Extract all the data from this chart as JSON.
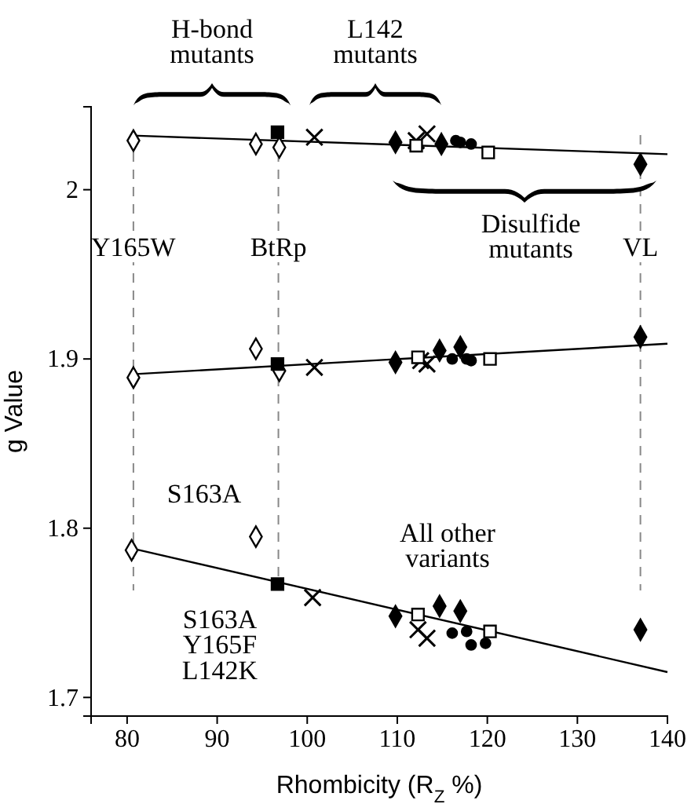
{
  "chart_data": {
    "type": "scatter",
    "xlabel": "Rhombicity (R$_{Z}$ %)",
    "ylabel": "g Value",
    "grid": false,
    "legend": false,
    "xlim": [
      76,
      140
    ],
    "ylim": [
      1.689,
      2.049
    ],
    "xticks": [
      80,
      90,
      100,
      110,
      120,
      130,
      140
    ],
    "yticks": [
      1.7,
      1.8,
      1.9,
      {
        "value": 2,
        "label": "2"
      }
    ],
    "series": [
      {
        "type": "scatter",
        "marker": "diamond",
        "color": "#ffffff",
        "x": [
          80.7,
          94.3,
          96.9,
          80.7,
          94.3,
          96.9,
          80.5,
          94.3
        ],
        "values": [
          2.029,
          2.027,
          2.025,
          1.889,
          1.906,
          1.893,
          1.787,
          1.795
        ]
      },
      {
        "type": "scatter",
        "marker": "square",
        "color": "#000000",
        "x": [
          96.7,
          96.7,
          96.7
        ],
        "values": [
          2.034,
          1.897,
          1.767
        ]
      },
      {
        "type": "scatter",
        "marker": "cross",
        "color": "#000000",
        "x": [
          100.8,
          112.1,
          113.3,
          100.8,
          112.6,
          113.3,
          100.6,
          112.3,
          113.3
        ],
        "values": [
          2.031,
          2.029,
          2.033,
          1.895,
          1.899,
          1.897,
          1.759,
          1.74,
          1.735
        ]
      },
      {
        "type": "scatter",
        "marker": "diamond",
        "color": "#000000",
        "x": [
          109.8,
          114.9,
          137,
          109.8,
          114.7,
          117,
          137,
          109.8,
          114.7,
          117,
          137
        ],
        "values": [
          2.028,
          2.027,
          2.015,
          1.898,
          1.905,
          1.907,
          1.913,
          1.748,
          1.754,
          1.751,
          1.74
        ]
      },
      {
        "type": "scatter",
        "marker": "square",
        "color": "#ffffff",
        "x": [
          112.1,
          120.1,
          112.3,
          120.3,
          112.3,
          120.3
        ],
        "values": [
          2.026,
          2.022,
          1.901,
          1.9,
          1.749,
          1.739
        ]
      },
      {
        "type": "scatter",
        "marker": "circle",
        "color": "#000000",
        "x": [
          116.5,
          117,
          118.2,
          116.1,
          117.7,
          118.2,
          116.1,
          117.7,
          118.2,
          119.8
        ],
        "values": [
          2.029,
          2.028,
          2.027,
          1.9,
          1.9,
          1.899,
          1.738,
          1.739,
          1.731,
          1.732
        ]
      },
      {
        "type": "line",
        "color": "#000000",
        "x": [
          80.6,
          140
        ],
        "values": [
          2.032,
          2.021
        ]
      },
      {
        "type": "line",
        "color": "#000000",
        "x": [
          80.6,
          140
        ],
        "values": [
          1.891,
          1.909
        ]
      },
      {
        "type": "line",
        "color": "#000000",
        "x": [
          80.6,
          140
        ],
        "values": [
          1.788,
          1.715
        ]
      }
    ],
    "ref_lines": [
      {
        "axis": "x",
        "value": 80.7,
        "label": "Y165W",
        "line_style": "dashed",
        "color": "#888888"
      },
      {
        "axis": "x",
        "value": 96.8,
        "label": "BtRp",
        "line_style": "dashed",
        "color": "#888888"
      },
      {
        "axis": "x",
        "value": 137,
        "label": "VL",
        "line_style": "dashed",
        "color": "#888888"
      }
    ],
    "annotations": [
      "H-bond\nmutants",
      "L142\nmutants",
      "Disulfide\nmutants",
      "S163A",
      "All other\nvariants",
      "S163A\nY165F\nL142K"
    ]
  }
}
